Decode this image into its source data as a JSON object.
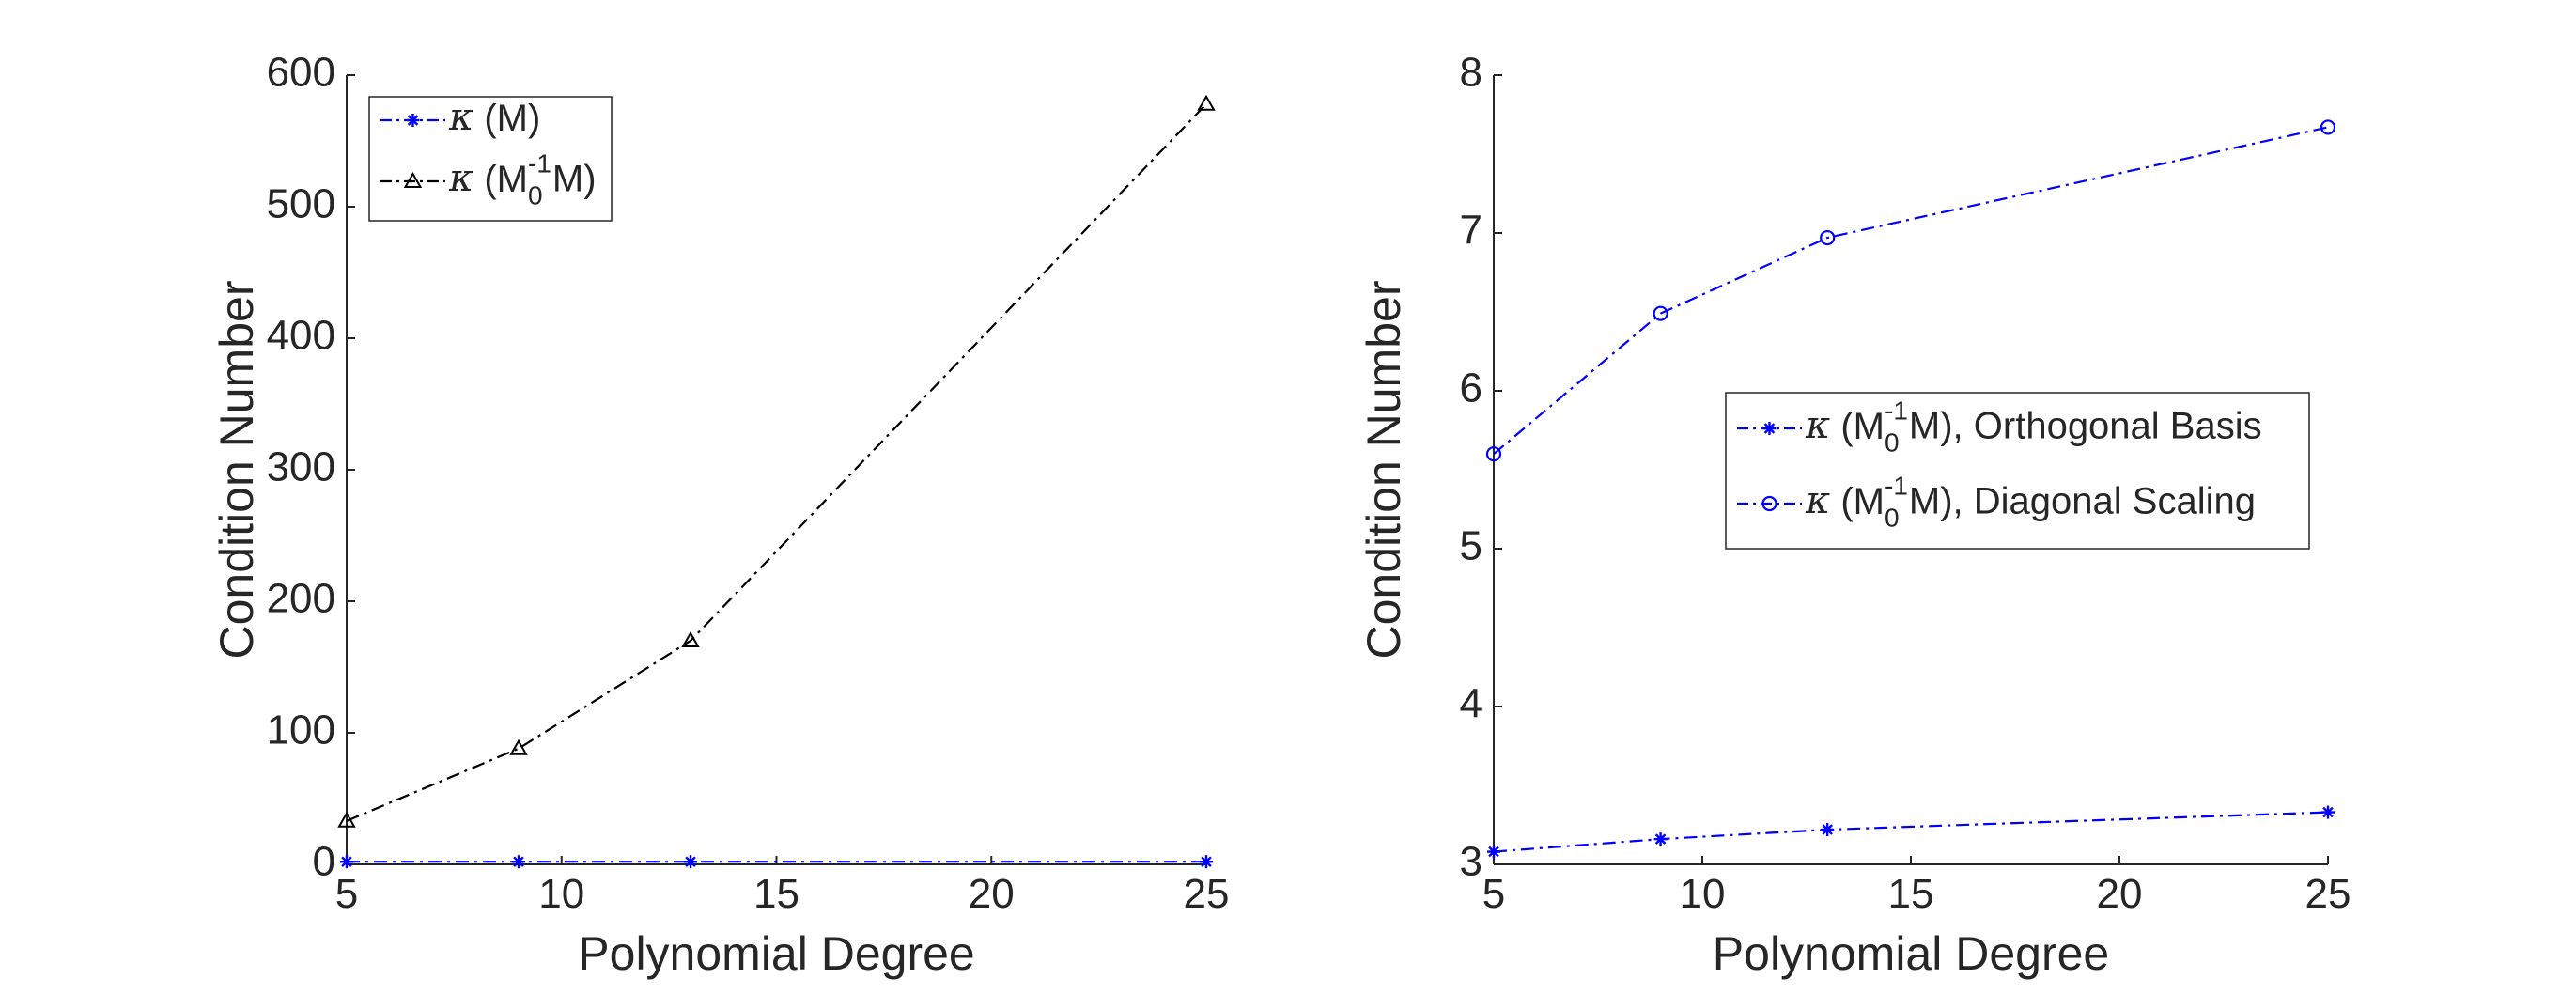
{
  "chart_data": [
    {
      "type": "line",
      "xlabel": "Polynomial Degree",
      "ylabel": "Condition Number",
      "x": [
        5,
        9,
        13,
        25
      ],
      "xlim": [
        5,
        25
      ],
      "ylim": [
        0,
        600
      ],
      "xticks": [
        5,
        10,
        15,
        20,
        25
      ],
      "yticks": [
        0,
        100,
        200,
        300,
        400,
        500,
        600
      ],
      "grid": false,
      "legend_position": "top-left",
      "series": [
        {
          "legend": {
            "kappa": "κ",
            "pre": " (M)",
            "sup": "",
            "sub": "",
            "post": ""
          },
          "values": [
            2,
            2,
            2,
            2
          ],
          "color": "#0000ff",
          "marker": "asterisk",
          "dash": "dash-dot"
        },
        {
          "legend": {
            "kappa": "κ",
            "pre": " (M",
            "sup": "-1",
            "sub": "0",
            "post": "M)"
          },
          "values": [
            33,
            88,
            170,
            578
          ],
          "color": "#000000",
          "marker": "triangle",
          "dash": "dash-dot"
        }
      ]
    },
    {
      "type": "line",
      "xlabel": "Polynomial Degree",
      "ylabel": "Condition Number",
      "x": [
        5,
        9,
        13,
        25
      ],
      "xlim": [
        5,
        25
      ],
      "ylim": [
        3,
        8
      ],
      "xticks": [
        5,
        10,
        15,
        20,
        25
      ],
      "yticks": [
        3,
        4,
        5,
        6,
        7,
        8
      ],
      "grid": false,
      "legend_position": "center-right",
      "series": [
        {
          "legend": {
            "kappa": "κ",
            "pre": " (M",
            "sup": "-1",
            "sub": "0",
            "post": "M), Orthogonal Basis"
          },
          "values": [
            3.08,
            3.16,
            3.22,
            3.33
          ],
          "color": "#0000ff",
          "marker": "asterisk",
          "dash": "dash-dot"
        },
        {
          "legend": {
            "kappa": "κ",
            "pre": " (M",
            "sup": "-1",
            "sub": "0",
            "post": "M), Diagonal Scaling"
          },
          "values": [
            5.6,
            6.49,
            6.97,
            7.67
          ],
          "color": "#0000ff",
          "marker": "circle",
          "dash": "dash-dot"
        }
      ]
    }
  ]
}
